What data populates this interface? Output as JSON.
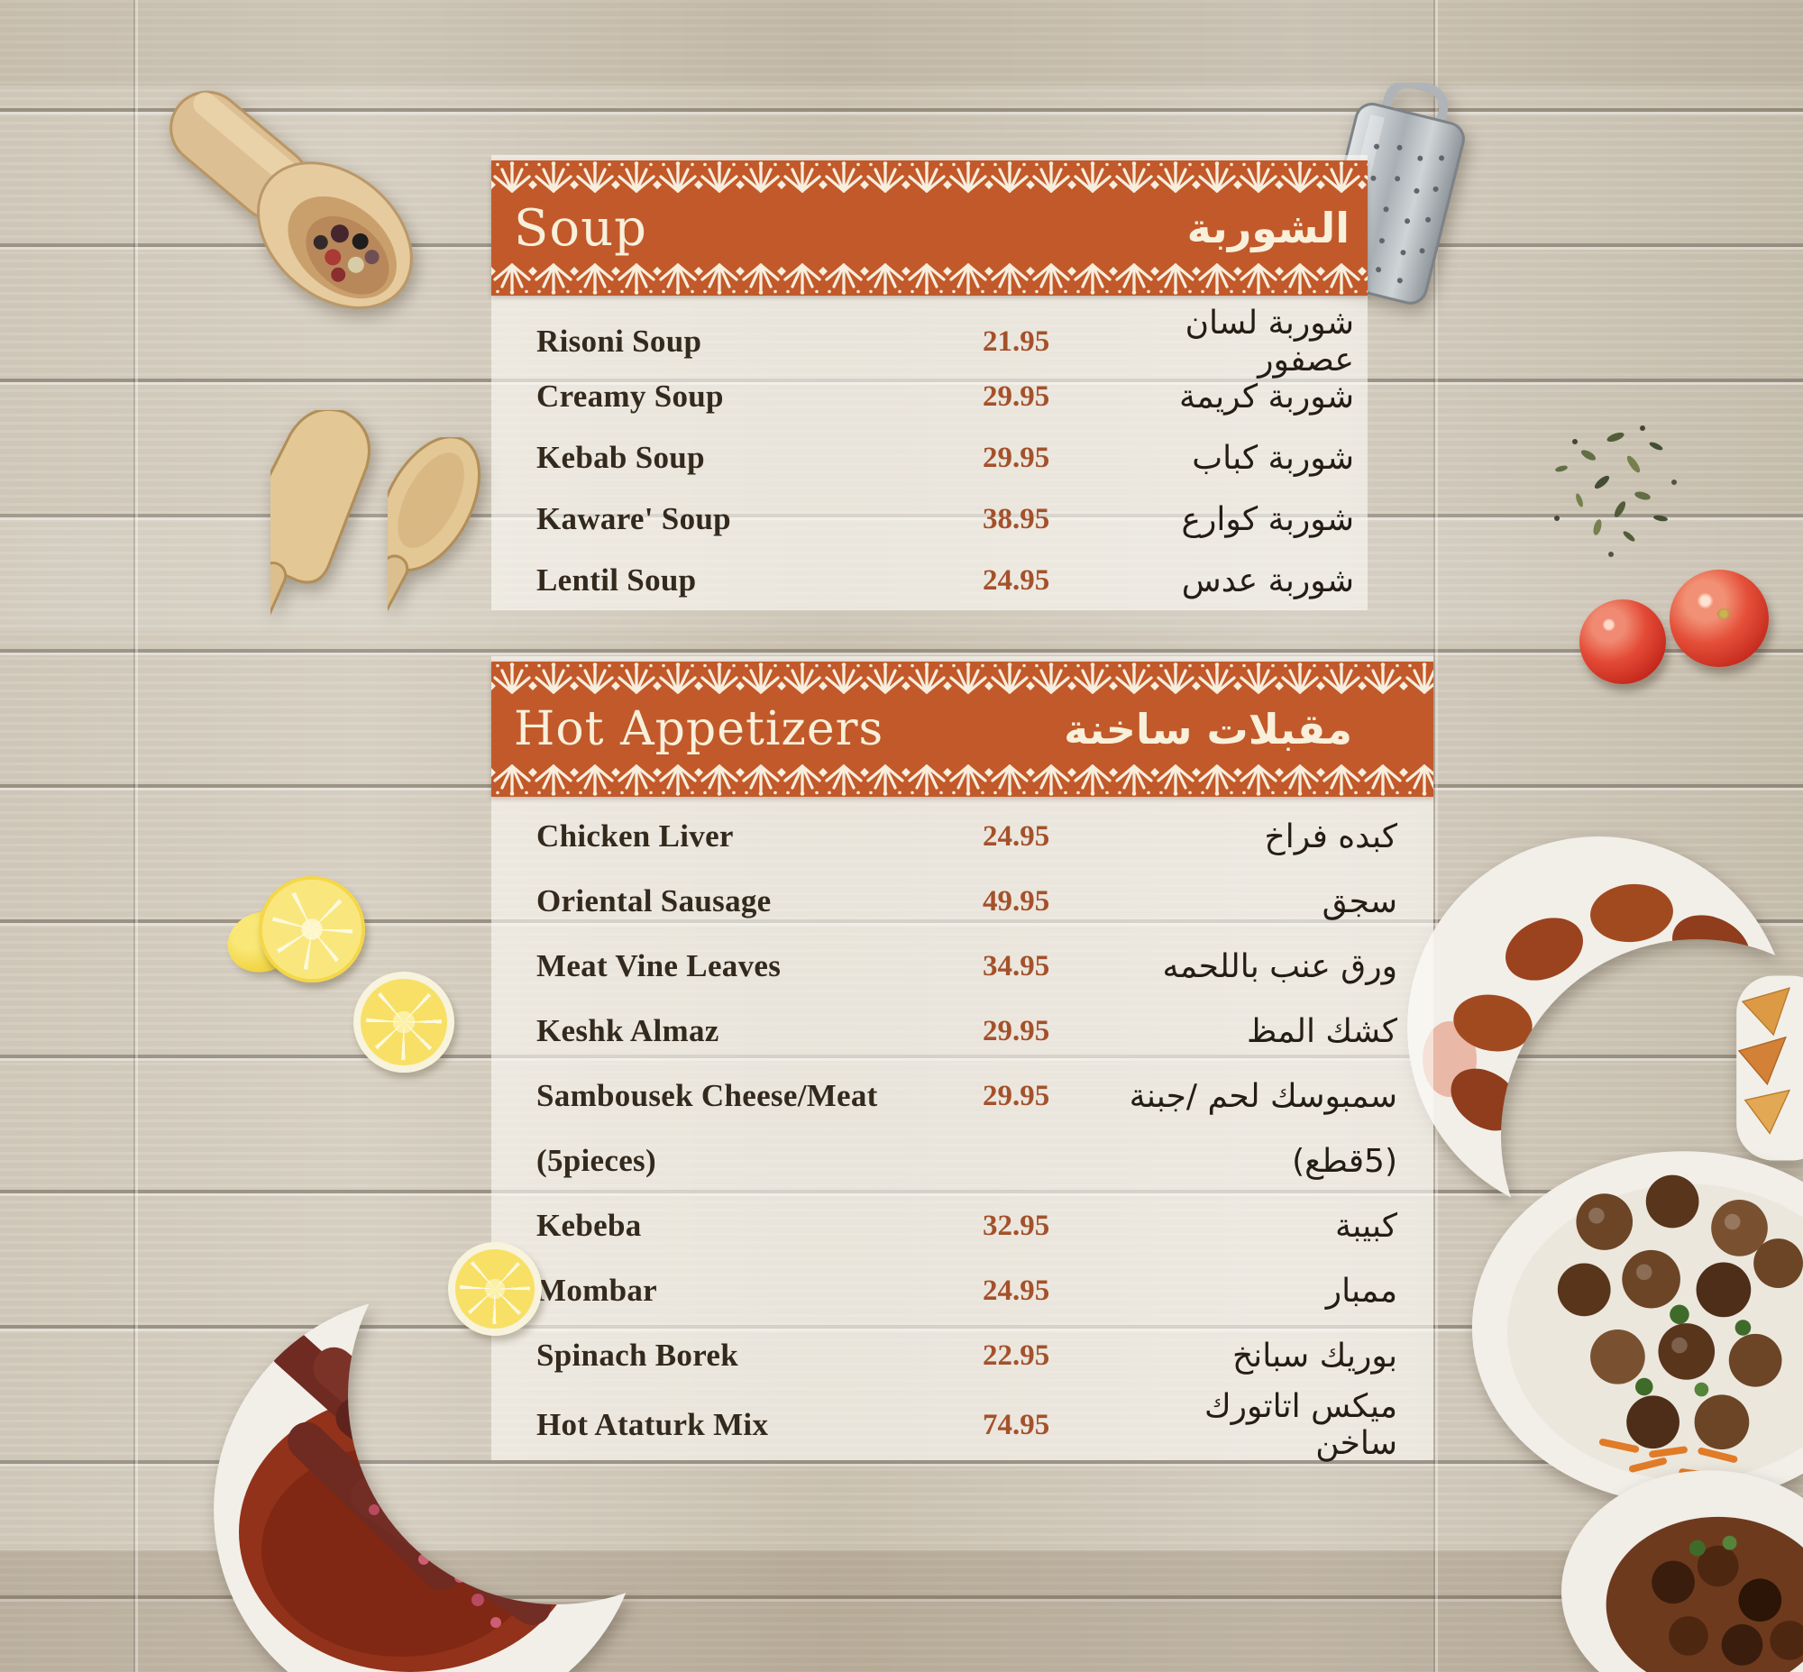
{
  "colors": {
    "banner_orange": "#c2592a",
    "lace_cream": "#f7eedd",
    "price_text": "#a4512b",
    "item_text": "#33291d",
    "banner_text": "#f8f0da"
  },
  "sections": [
    {
      "id": "soup",
      "title_en": "Soup",
      "title_ar": "الشوربة",
      "items": [
        {
          "en": "Risoni Soup",
          "price": "21.95",
          "ar": "شوربة لسان عصفور"
        },
        {
          "en": "Creamy Soup",
          "price": "29.95",
          "ar": "شوربة كريمة"
        },
        {
          "en": "Kebab Soup",
          "price": "29.95",
          "ar": "شوربة كباب"
        },
        {
          "en": "Kaware' Soup",
          "price": "38.95",
          "ar": "شوربة كوارع"
        },
        {
          "en": "Lentil Soup",
          "price": "24.95",
          "ar": "شوربة عدس"
        }
      ]
    },
    {
      "id": "hot-appetizers",
      "title_en": "Hot Appetizers",
      "title_ar": "مقبلات ساخنة",
      "items": [
        {
          "en": "Chicken Liver",
          "price": "24.95",
          "ar": "كبده فراخ"
        },
        {
          "en": "Oriental Sausage",
          "price": "49.95",
          "ar": "سجق"
        },
        {
          "en": "Meat Vine Leaves",
          "price": "34.95",
          "ar": "ورق عنب باللحمه"
        },
        {
          "en": "Keshk Almaz",
          "price": "29.95",
          "ar": "كشك المظ"
        },
        {
          "en": "Sambousek Cheese/Meat",
          "price": "29.95",
          "ar": "سمبوسك لحم /جبنة"
        },
        {
          "en": "(5pieces)",
          "price": "",
          "ar": "(5قطع)"
        },
        {
          "en": "Kebeba",
          "price": "32.95",
          "ar": "كبيبة"
        },
        {
          "en": "Mombar",
          "price": "24.95",
          "ar": "ممبار"
        },
        {
          "en": "Spinach Borek",
          "price": "22.95",
          "ar": "بوريك سبانخ"
        },
        {
          "en": "Hot Ataturk Mix",
          "price": "74.95",
          "ar": "ميكس اتاتورك ساخن"
        }
      ]
    }
  ],
  "decor": [
    "wooden-pepper-scoop",
    "wooden-spatulas",
    "lemon-slices",
    "sausage-dish",
    "metal-grater",
    "thyme-herbs",
    "tomatoes",
    "kibbeh-plate",
    "samosa-plate",
    "meatball-plate",
    "meat-stew-dish"
  ]
}
